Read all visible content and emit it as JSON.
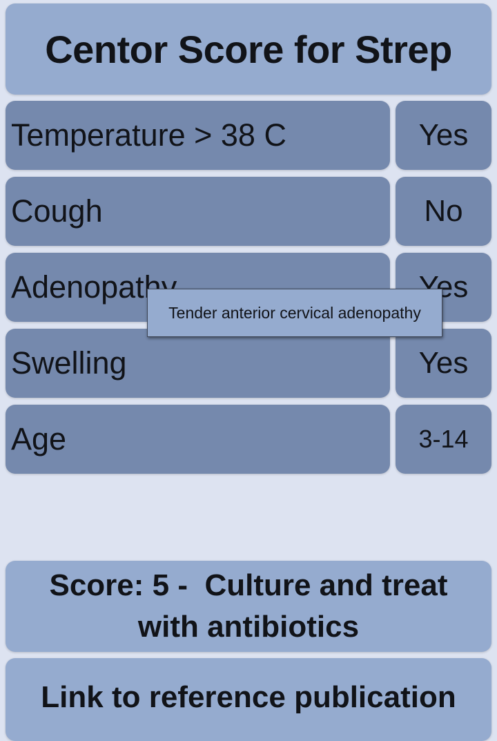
{
  "header": {
    "title": "Centor Score for Strep"
  },
  "criteria": [
    {
      "label": "Temperature > 38 C",
      "value": "Yes"
    },
    {
      "label": "Cough",
      "value": "No"
    },
    {
      "label": "Adenopathy",
      "value": "Yes"
    },
    {
      "label": "Swelling",
      "value": "Yes"
    },
    {
      "label": "Age",
      "value": "3-14"
    }
  ],
  "tooltip": {
    "text": "Tender anterior cervical adenopathy"
  },
  "result": {
    "text": "Score: 5 -  Culture and treat with antibiotics"
  },
  "reference": {
    "label": "Link to reference publication"
  },
  "colors": {
    "background": "#dde3f1",
    "header": "#95abcf",
    "row": "#7589ad",
    "text": "#111318"
  }
}
